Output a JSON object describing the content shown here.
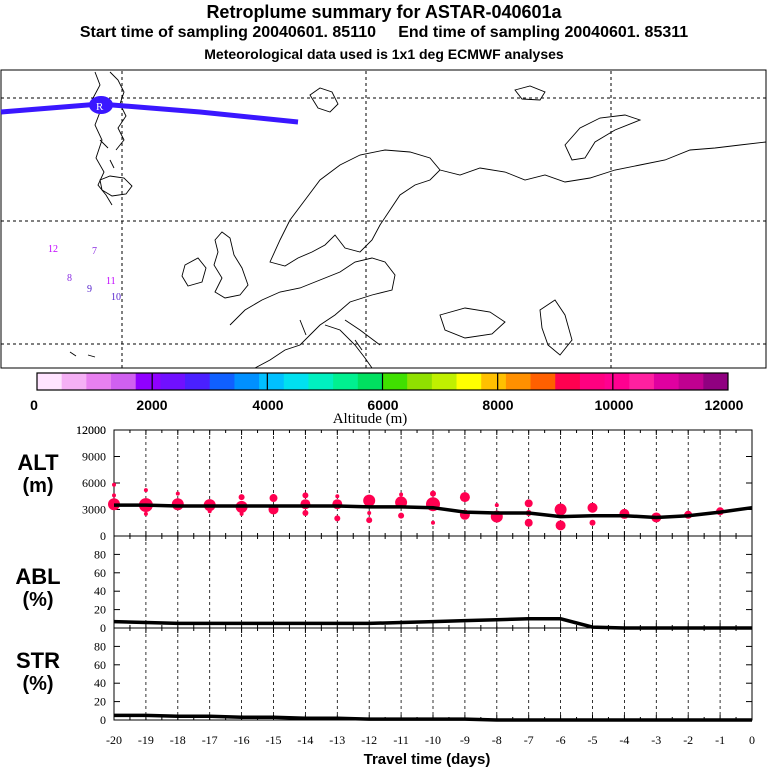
{
  "header": {
    "title": "Retroplume summary for ASTAR-040601a",
    "start_label": "Start time of sampling 20040601. 85110",
    "end_label": "End time of sampling 20040601. 85311",
    "met_label": "Meteorological data used is 1x1 deg ECMWF analyses"
  },
  "map": {
    "trajectory_color": "#3a17ff",
    "release_marker": "R",
    "plume_labels": [
      {
        "text": "12",
        "color": "#c000ff"
      },
      {
        "text": "7",
        "color": "#8a2be2"
      },
      {
        "text": "8",
        "color": "#8a2be2"
      },
      {
        "text": "9",
        "color": "#5522cc"
      },
      {
        "text": "11",
        "color": "#c000ff"
      },
      {
        "text": "10",
        "color": "#5522cc"
      }
    ]
  },
  "colorbar": {
    "label": "Altitude (m)",
    "ticks": [
      "0",
      "2000",
      "4000",
      "6000",
      "8000",
      "10000",
      "12000"
    ],
    "colors": [
      "#ffe4ff",
      "#f5b0f5",
      "#e880f0",
      "#d060f0",
      "#9000ff",
      "#7010ff",
      "#4a20ff",
      "#1060ff",
      "#0090ff",
      "#00c0ff",
      "#00e0f0",
      "#00f0c0",
      "#00f090",
      "#00e060",
      "#40e000",
      "#90e000",
      "#c0f000",
      "#ffff00",
      "#ffc000",
      "#ff9000",
      "#ff6000",
      "#ff0050",
      "#ff0080",
      "#ff0090",
      "#ff20a0",
      "#e000a0",
      "#c00090",
      "#900080"
    ]
  },
  "chart_data": [
    {
      "type": "line",
      "panel": "ALT",
      "ylabel": "ALT",
      "yunit": "(m)",
      "ylim": [
        0,
        12000
      ],
      "yticks": [
        0,
        3000,
        6000,
        9000,
        12000
      ],
      "xlabel": "Travel time (days)",
      "xlim": [
        -20,
        0
      ],
      "xticks": [
        -20,
        -19,
        -18,
        -17,
        -16,
        -15,
        -14,
        -13,
        -12,
        -11,
        -10,
        -9,
        -8,
        -7,
        -6,
        -5,
        -4,
        -3,
        -2,
        -1,
        0
      ],
      "x": [
        -20,
        -19,
        -18,
        -17,
        -16,
        -15,
        -14,
        -13,
        -12,
        -11,
        -10,
        -9,
        -8,
        -7,
        -6,
        -5,
        -4,
        -3,
        -2,
        -1,
        0
      ],
      "y": [
        3500,
        3500,
        3400,
        3400,
        3400,
        3400,
        3400,
        3400,
        3300,
        3300,
        3200,
        2700,
        2600,
        2600,
        2200,
        2300,
        2300,
        2100,
        2300,
        2700,
        3200
      ],
      "cluster_points": [
        {
          "x": -20,
          "y": 3600,
          "s": 6
        },
        {
          "x": -20,
          "y": 5800,
          "s": 2
        },
        {
          "x": -20,
          "y": 4600,
          "s": 2
        },
        {
          "x": -19,
          "y": 3500,
          "s": 7
        },
        {
          "x": -19,
          "y": 5200,
          "s": 2
        },
        {
          "x": -19,
          "y": 2500,
          "s": 2
        },
        {
          "x": -18,
          "y": 3600,
          "s": 6
        },
        {
          "x": -18,
          "y": 4800,
          "s": 2
        },
        {
          "x": -17,
          "y": 3500,
          "s": 6
        },
        {
          "x": -17,
          "y": 2800,
          "s": 2
        },
        {
          "x": -16,
          "y": 3300,
          "s": 6
        },
        {
          "x": -16,
          "y": 4400,
          "s": 3
        },
        {
          "x": -16,
          "y": 2500,
          "s": 2
        },
        {
          "x": -15,
          "y": 3000,
          "s": 5
        },
        {
          "x": -15,
          "y": 4300,
          "s": 4
        },
        {
          "x": -14,
          "y": 3600,
          "s": 5
        },
        {
          "x": -14,
          "y": 2600,
          "s": 3
        },
        {
          "x": -14,
          "y": 4600,
          "s": 3
        },
        {
          "x": -13,
          "y": 3600,
          "s": 5
        },
        {
          "x": -13,
          "y": 2000,
          "s": 3
        },
        {
          "x": -13,
          "y": 4500,
          "s": 2
        },
        {
          "x": -12,
          "y": 4000,
          "s": 6
        },
        {
          "x": -12,
          "y": 1800,
          "s": 3
        },
        {
          "x": -12,
          "y": 2600,
          "s": 2
        },
        {
          "x": -11,
          "y": 3800,
          "s": 6
        },
        {
          "x": -11,
          "y": 2300,
          "s": 3
        },
        {
          "x": -11,
          "y": 4700,
          "s": 2
        },
        {
          "x": -10,
          "y": 3600,
          "s": 7
        },
        {
          "x": -10,
          "y": 4800,
          "s": 3
        },
        {
          "x": -10,
          "y": 1500,
          "s": 2
        },
        {
          "x": -9,
          "y": 4400,
          "s": 5
        },
        {
          "x": -9,
          "y": 2400,
          "s": 5
        },
        {
          "x": -8,
          "y": 2200,
          "s": 6
        },
        {
          "x": -8,
          "y": 3500,
          "s": 2
        },
        {
          "x": -7,
          "y": 1500,
          "s": 4
        },
        {
          "x": -7,
          "y": 3700,
          "s": 4
        },
        {
          "x": -7,
          "y": 2600,
          "s": 3
        },
        {
          "x": -6,
          "y": 3000,
          "s": 6
        },
        {
          "x": -6,
          "y": 1200,
          "s": 5
        },
        {
          "x": -5,
          "y": 3200,
          "s": 5
        },
        {
          "x": -5,
          "y": 1500,
          "s": 3
        },
        {
          "x": -4,
          "y": 2500,
          "s": 5
        },
        {
          "x": -3,
          "y": 2100,
          "s": 5
        },
        {
          "x": -2,
          "y": 2400,
          "s": 4
        },
        {
          "x": -1,
          "y": 2800,
          "s": 4
        }
      ]
    },
    {
      "type": "line",
      "panel": "ABL",
      "ylabel": "ABL",
      "yunit": "(%)",
      "ylim": [
        0,
        100
      ],
      "yticks": [
        0,
        20,
        40,
        60,
        80
      ],
      "xlim": [
        -20,
        0
      ],
      "x": [
        -20,
        -19,
        -18,
        -17,
        -16,
        -15,
        -14,
        -13,
        -12,
        -11,
        -10,
        -9,
        -8,
        -7,
        -6,
        -5,
        -4,
        -3,
        -2,
        -1,
        0
      ],
      "y": [
        7,
        6,
        5,
        5,
        5,
        5,
        5,
        5,
        5,
        6,
        7,
        8,
        9,
        10,
        10,
        1,
        0,
        0,
        0,
        0,
        0
      ]
    },
    {
      "type": "line",
      "panel": "STR",
      "ylabel": "STR",
      "yunit": "(%)",
      "ylim": [
        0,
        100
      ],
      "yticks": [
        0,
        20,
        40,
        60,
        80
      ],
      "xlim": [
        -20,
        0
      ],
      "x": [
        -20,
        -19,
        -18,
        -17,
        -16,
        -15,
        -14,
        -13,
        -12,
        -11,
        -10,
        -9,
        -8,
        -7,
        -6,
        -5,
        -4,
        -3,
        -2,
        -1,
        0
      ],
      "y": [
        5,
        5,
        4,
        4,
        3,
        3,
        2,
        2,
        1,
        1,
        1,
        1,
        0,
        0,
        0,
        0,
        0,
        0,
        0,
        0,
        0
      ]
    }
  ]
}
